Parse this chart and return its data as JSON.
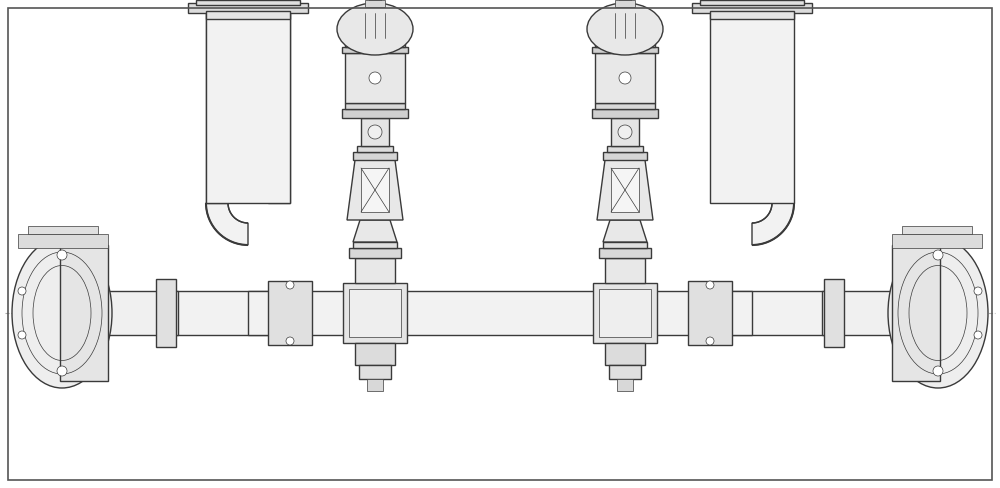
{
  "bg_color": "#ffffff",
  "line_color": "#3a3a3a",
  "dashed_color": "#aaaaaa",
  "fig_width": 10.0,
  "fig_height": 4.88,
  "dpi": 100,
  "lw_main": 1.0,
  "lw_thin": 0.5,
  "lw_thick": 1.5
}
